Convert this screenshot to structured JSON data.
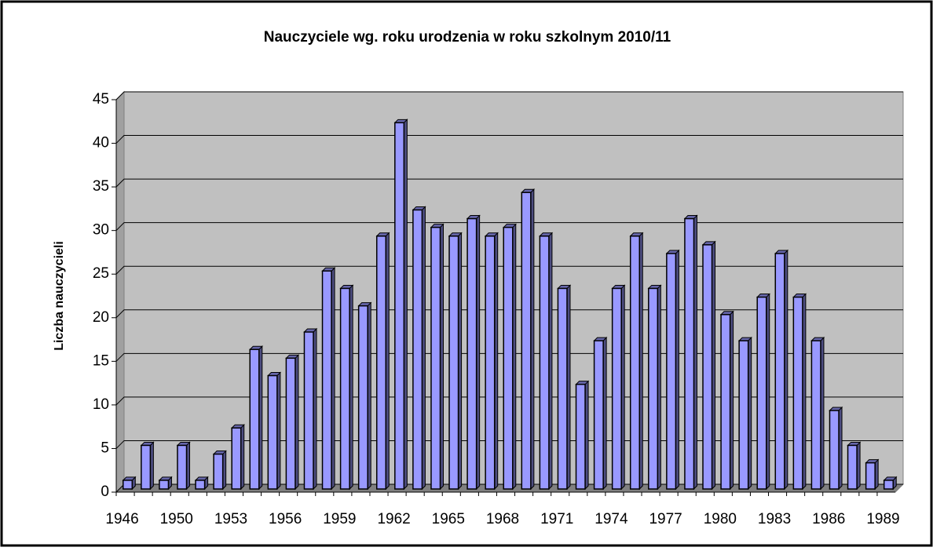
{
  "chart_data": {
    "type": "bar",
    "title": "Nauczyciele wg. roku urodzenia w roku szkolnym 2010/11",
    "y_label": "Liczba nauczycieli",
    "categories": [
      "1946",
      null,
      null,
      "1950",
      null,
      null,
      "1953",
      null,
      null,
      "1956",
      null,
      null,
      "1959",
      null,
      null,
      "1962",
      null,
      null,
      "1965",
      null,
      null,
      "1968",
      null,
      null,
      "1971",
      null,
      null,
      "1974",
      null,
      null,
      "1977",
      null,
      null,
      "1980",
      null,
      null,
      "1983",
      null,
      null,
      "1986",
      null,
      null,
      "1989"
    ],
    "values": [
      1,
      5,
      1,
      5,
      1,
      4,
      7,
      16,
      13,
      15,
      18,
      25,
      23,
      21,
      29,
      42,
      32,
      30,
      29,
      31,
      29,
      30,
      34,
      29,
      23,
      12,
      17,
      23,
      29,
      23,
      27,
      31,
      28,
      20,
      17,
      22,
      27,
      22,
      17,
      9,
      5,
      3,
      1
    ],
    "color": "#9999ff",
    "ylim": [
      0,
      45
    ],
    "yticks": [
      0,
      5,
      10,
      15,
      20,
      25,
      30,
      35,
      40,
      45
    ],
    "grid": true
  }
}
